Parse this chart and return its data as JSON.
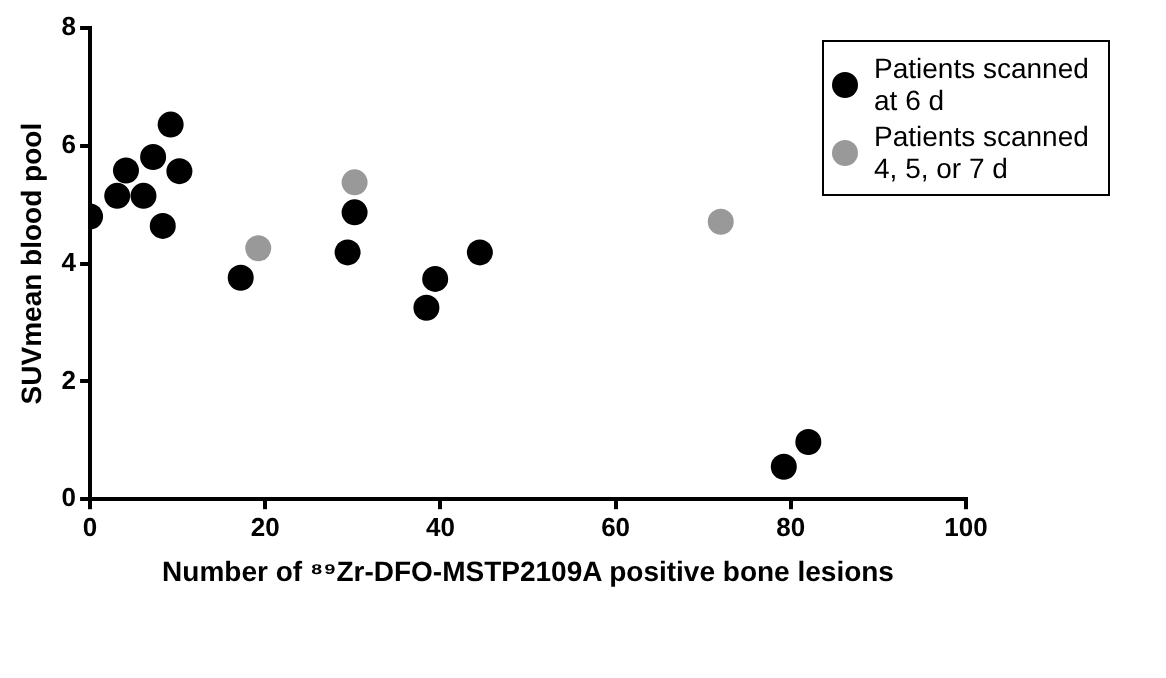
{
  "chart_data": {
    "type": "scatter",
    "xlabel": "Number of ⁸⁹Zr-DFO-MSTP2109A positive bone lesions",
    "ylabel": "SUVmean blood pool",
    "xlim": [
      0,
      100
    ],
    "xticks": [
      0,
      20,
      40,
      60,
      80,
      100
    ],
    "ylim": [
      0,
      8
    ],
    "yticks": [
      0,
      2,
      4,
      6,
      8
    ],
    "grid": false,
    "legend": "top right",
    "marker": "circle",
    "series": [
      {
        "name": "Patients scanned at 6 d",
        "color": "#000000",
        "x": [
          0,
          3.1,
          4.1,
          6.1,
          7.2,
          8.3,
          9.2,
          10.2,
          17.2,
          29.4,
          30.2,
          38.4,
          39.4,
          44.5,
          79.2,
          82
        ],
        "values": [
          4.8,
          5.15,
          5.58,
          5.15,
          5.81,
          4.64,
          6.36,
          5.57,
          3.76,
          4.19,
          4.87,
          3.25,
          3.74,
          4.19,
          0.55,
          0.97
        ]
      },
      {
        "name": "Patients scanned 4, 5, or 7 d",
        "color": "#999999",
        "x": [
          19.2,
          30.2,
          72
        ],
        "values": [
          4.26,
          5.38,
          4.71
        ]
      }
    ]
  }
}
